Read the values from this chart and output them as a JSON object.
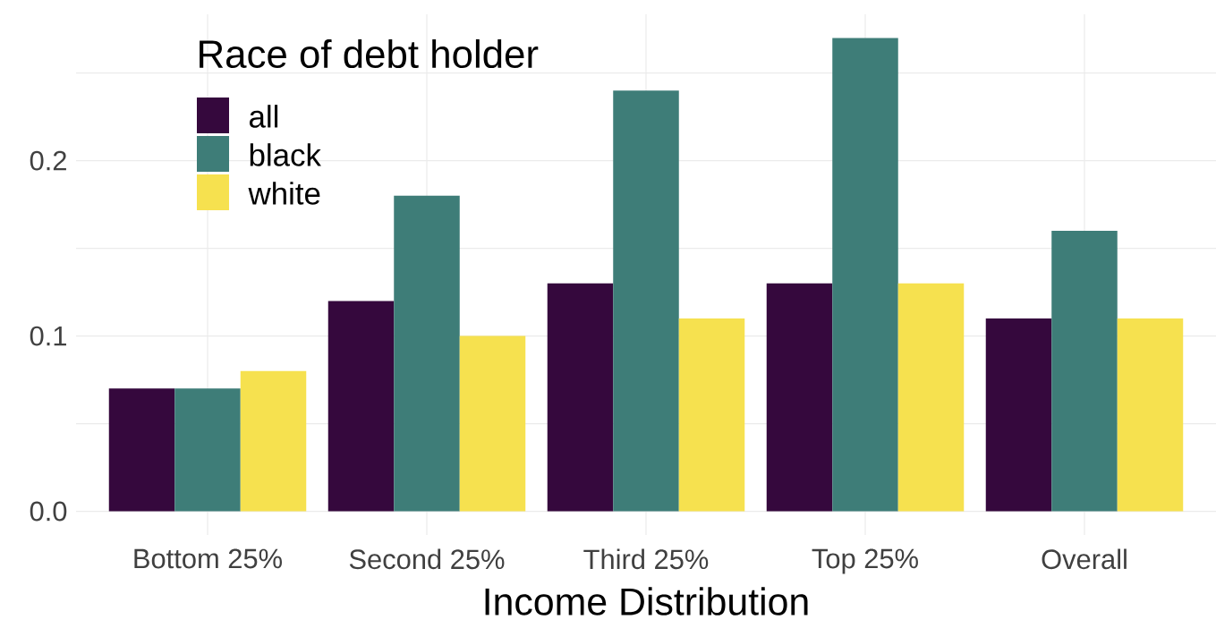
{
  "chart_data": {
    "type": "bar",
    "xlabel": "Income Distribution",
    "legend_title": "Race of debt holder",
    "categories": [
      "Bottom 25%",
      "Second 25%",
      "Third 25%",
      "Top 25%",
      "Overall"
    ],
    "series": [
      {
        "name": "all",
        "color": "#35083d",
        "values": [
          0.07,
          0.12,
          0.13,
          0.13,
          0.11
        ]
      },
      {
        "name": "black",
        "color": "#3e7d78",
        "values": [
          0.07,
          0.18,
          0.24,
          0.27,
          0.16
        ]
      },
      {
        "name": "white",
        "color": "#f6e14f",
        "values": [
          0.08,
          0.1,
          0.11,
          0.13,
          0.11
        ]
      }
    ],
    "ylim": [
      -0.0135,
      0.2835
    ],
    "yticks": [
      {
        "value": 0,
        "label": "0.0"
      },
      {
        "value": 0.05,
        "label": null
      },
      {
        "value": 0.1,
        "label": "0.1"
      },
      {
        "value": 0.15,
        "label": null
      },
      {
        "value": 0.2,
        "label": "0.2"
      },
      {
        "value": 0.25,
        "label": null
      }
    ],
    "grid": true,
    "legend": "top left"
  }
}
